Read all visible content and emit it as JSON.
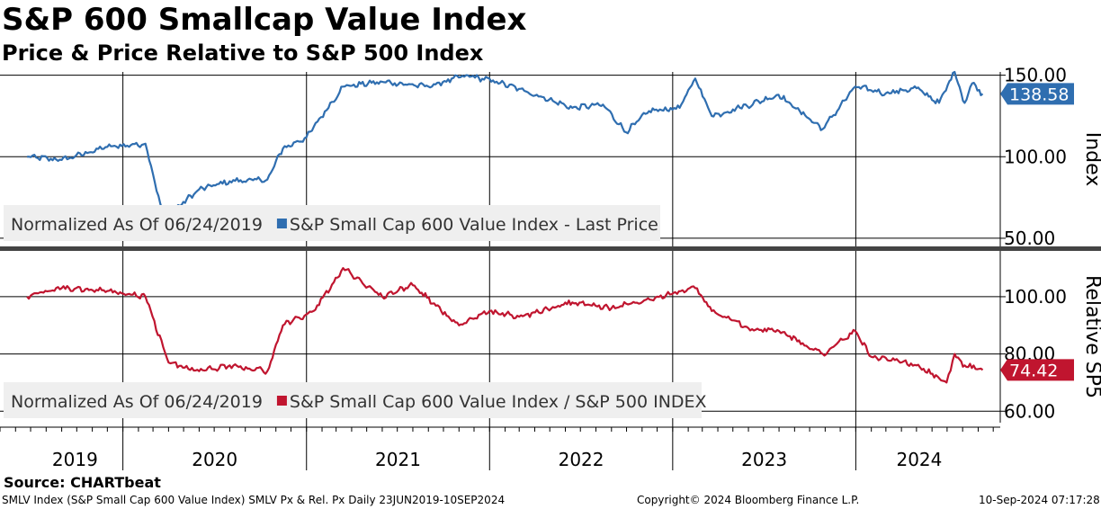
{
  "header": {
    "title": "S&P 600 Smallcap Value Index",
    "subtitle": "Price & Price Relative to S&P 500 Index"
  },
  "footer": {
    "source": "Source: CHARTbeat",
    "ticker_info": "SMLV Index (S&P Small Cap 600 Value Index) SMLV Px & Rel. Px  Daily 23JUN2019-10SEP2024",
    "copyright": "Copyright© 2024 Bloomberg Finance L.P.",
    "timestamp": "10-Sep-2024 07:17:28"
  },
  "colors": {
    "price_series": "#2f6eb0",
    "relative_series": "#c0152f",
    "gridline": "#000000",
    "legend_bg": "#efefef"
  },
  "chart_data": [
    {
      "type": "line",
      "panel": "top",
      "ylabel": "Index",
      "ylim": [
        45,
        152
      ],
      "yticks": [
        50,
        100,
        150
      ],
      "ytick_labels": [
        "50.00",
        "100.00",
        "150.00"
      ],
      "legend": "Normalized As Of 06/24/2019",
      "last_value_label": "138.58",
      "grid": true,
      "x": [
        "2019-06-24",
        "2019-09-01",
        "2019-12-01",
        "2020-02-15",
        "2020-03-23",
        "2020-06-01",
        "2020-08-01",
        "2020-10-15",
        "2020-11-15",
        "2021-01-01",
        "2021-03-15",
        "2021-06-01",
        "2021-09-01",
        "2021-11-15",
        "2022-01-15",
        "2022-03-15",
        "2022-06-15",
        "2022-08-15",
        "2022-09-30",
        "2022-11-15",
        "2023-01-15",
        "2023-02-15",
        "2023-03-20",
        "2023-05-15",
        "2023-07-31",
        "2023-10-27",
        "2023-12-31",
        "2024-03-01",
        "2024-05-01",
        "2024-06-15",
        "2024-07-16",
        "2024-08-05",
        "2024-08-20",
        "2024-09-10"
      ],
      "series": [
        {
          "name": "S&P Small Cap 600 Value Index - Last Price",
          "values": [
            100,
            98,
            106,
            108,
            62,
            80,
            85,
            86,
            105,
            112,
            143,
            146,
            143,
            150,
            146,
            140,
            130,
            132,
            115,
            128,
            130,
            148,
            125,
            130,
            138,
            117,
            143,
            139,
            142,
            133,
            152,
            133,
            145,
            138.58
          ]
        }
      ]
    },
    {
      "type": "line",
      "panel": "bottom",
      "ylabel": "Relative SP5",
      "ylim": [
        56,
        116
      ],
      "yticks": [
        60,
        80,
        100
      ],
      "ytick_labels": [
        "60.00",
        "80.00",
        "100.00"
      ],
      "legend": "Normalized As Of 06/24/2019",
      "last_value_label": "74.42",
      "grid": true,
      "x": [
        "2019-06-24",
        "2019-09-01",
        "2019-12-01",
        "2020-02-15",
        "2020-04-01",
        "2020-06-01",
        "2020-08-01",
        "2020-10-15",
        "2020-11-15",
        "2021-01-15",
        "2021-03-15",
        "2021-06-01",
        "2021-08-01",
        "2021-11-01",
        "2022-01-01",
        "2022-03-01",
        "2022-06-15",
        "2022-09-01",
        "2022-12-01",
        "2023-02-15",
        "2023-03-20",
        "2023-06-01",
        "2023-08-01",
        "2023-10-27",
        "2023-12-31",
        "2024-02-01",
        "2024-05-01",
        "2024-06-30",
        "2024-07-16",
        "2024-08-05",
        "2024-09-10"
      ],
      "series": [
        {
          "name": "S&P Small Cap 600 Value Index / S&P 500 INDEX",
          "values": [
            100,
            103,
            102,
            100,
            77,
            74,
            76,
            74,
            90,
            95,
            110,
            100,
            104,
            90,
            95,
            93,
            98,
            96,
            100,
            103,
            95,
            89,
            88,
            80,
            88,
            79,
            76,
            70,
            80,
            76,
            74.42
          ]
        }
      ]
    }
  ],
  "x_axis": {
    "years": [
      "2019",
      "2020",
      "2021",
      "2022",
      "2023",
      "2024"
    ],
    "start": "2019-06-24",
    "end": "2024-09-10"
  }
}
